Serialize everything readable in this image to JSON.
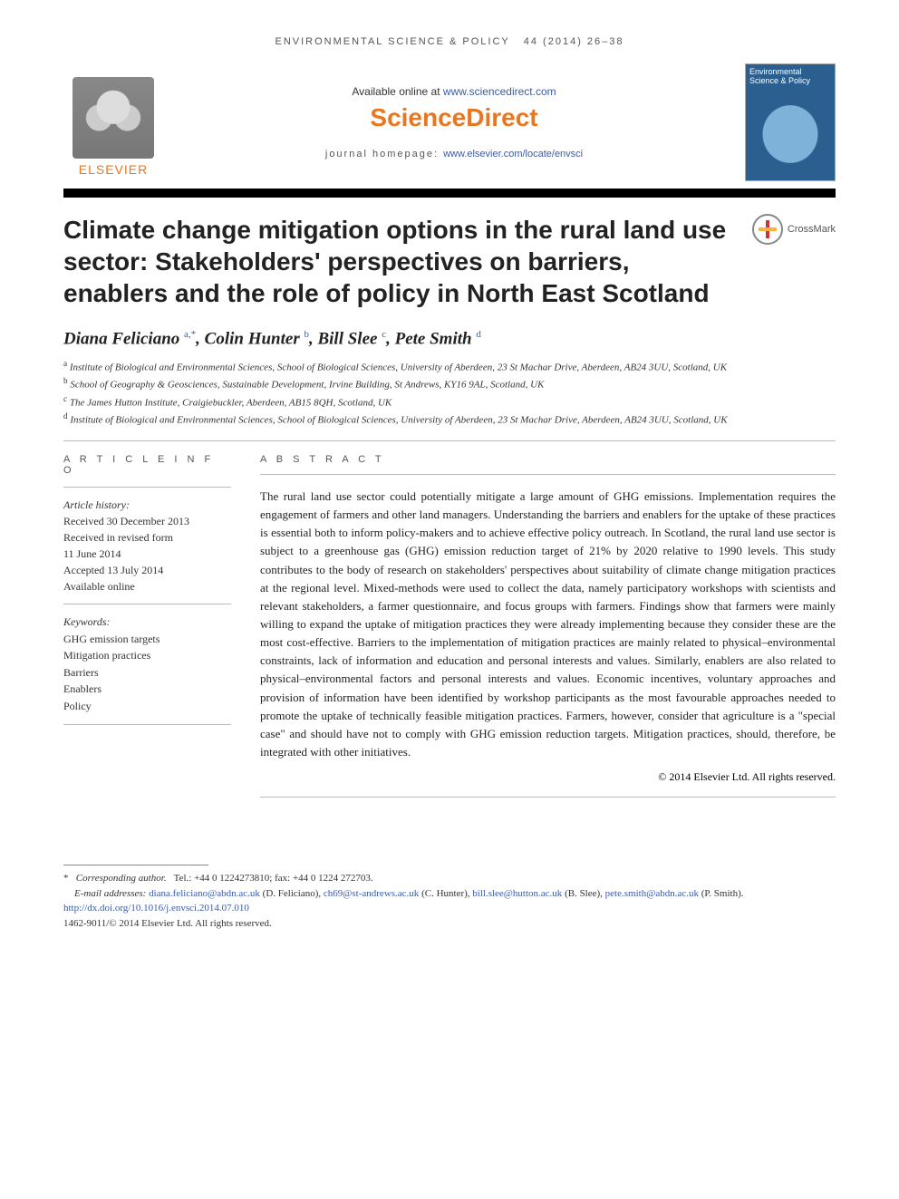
{
  "running_head": {
    "journal": "ENVIRONMENTAL SCIENCE & POLICY",
    "citation": "44 (2014) 26–38"
  },
  "banner": {
    "elsevier_word": "ELSEVIER",
    "available_prefix": "Available online at ",
    "available_url": "www.sciencedirect.com",
    "sd_logo": "ScienceDirect",
    "homepage_prefix": "journal homepage: ",
    "homepage_url": "www.elsevier.com/locate/envsci",
    "cover_title": "Environmental Science & Policy"
  },
  "title": "Climate change mitigation options in the rural land use sector: Stakeholders' perspectives on barriers, enablers and the role of policy in North East Scotland",
  "crossmark_label": "CrossMark",
  "authors_html": "Diana Feliciano <sup><a>a,</a>*</sup>, Colin Hunter <sup><a>b</a></sup>, Bill Slee <sup><a>c</a></sup>, Pete Smith <sup><a>d</a></sup>",
  "affiliations": [
    {
      "sup": "a",
      "text": "Institute of Biological and Environmental Sciences, School of Biological Sciences, University of Aberdeen, 23 St Machar Drive, Aberdeen, AB24 3UU, Scotland, UK"
    },
    {
      "sup": "b",
      "text": "School of Geography & Geosciences, Sustainable Development, Irvine Building, St Andrews, KY16 9AL, Scotland, UK"
    },
    {
      "sup": "c",
      "text": "The James Hutton Institute, Craigiebuckler, Aberdeen, AB15 8QH, Scotland, UK"
    },
    {
      "sup": "d",
      "text": "Institute of Biological and Environmental Sciences, School of Biological Sciences, University of Aberdeen, 23 St Machar Drive, Aberdeen, AB24 3UU, Scotland, UK"
    }
  ],
  "article_info": {
    "heading": "A R T I C L E   I N F O",
    "history_label": "Article history:",
    "history": [
      "Received 30 December 2013",
      "Received in revised form",
      "11 June 2014",
      "Accepted 13 July 2014",
      "Available online"
    ],
    "keywords_label": "Keywords:",
    "keywords": [
      "GHG emission targets",
      "Mitigation practices",
      "Barriers",
      "Enablers",
      "Policy"
    ]
  },
  "abstract": {
    "heading": "A B S T R A C T",
    "text": "The rural land use sector could potentially mitigate a large amount of GHG emissions. Implementation requires the engagement of farmers and other land managers. Understanding the barriers and enablers for the uptake of these practices is essential both to inform policy-makers and to achieve effective policy outreach. In Scotland, the rural land use sector is subject to a greenhouse gas (GHG) emission reduction target of 21% by 2020 relative to 1990 levels. This study contributes to the body of research on stakeholders' perspectives about suitability of climate change mitigation practices at the regional level. Mixed-methods were used to collect the data, namely participatory workshops with scientists and relevant stakeholders, a farmer questionnaire, and focus groups with farmers. Findings show that farmers were mainly willing to expand the uptake of mitigation practices they were already implementing because they consider these are the most cost-effective. Barriers to the implementation of mitigation practices are mainly related to physical–environmental constraints, lack of information and education and personal interests and values. Similarly, enablers are also related to physical–environmental factors and personal interests and values. Economic incentives, voluntary approaches and provision of information have been identified by workshop participants as the most favourable approaches needed to promote the uptake of technically feasible mitigation practices. Farmers, however, consider that agriculture is a \"special case\" and should have not to comply with GHG emission reduction targets. Mitigation practices, should, therefore, be integrated with other initiatives.",
    "copyright": "© 2014 Elsevier Ltd. All rights reserved."
  },
  "footnotes": {
    "corr_symbol": "*",
    "corr_label": "Corresponding author.",
    "corr_contact": "Tel.: +44 0 1224273810; fax: +44 0 1224 272703.",
    "emails_label": "E-mail addresses:",
    "emails": [
      {
        "addr": "diana.feliciano@abdn.ac.uk",
        "who": "(D. Feliciano)"
      },
      {
        "addr": "ch69@st-andrews.ac.uk",
        "who": "(C. Hunter)"
      },
      {
        "addr": "bill.slee@hutton.ac.uk",
        "who": "(B. Slee)"
      },
      {
        "addr": "pete.smith@abdn.ac.uk",
        "who": "(P. Smith)."
      }
    ],
    "doi_url": "http://dx.doi.org/10.1016/j.envsci.2014.07.010",
    "issn_line": "1462-9011/© 2014 Elsevier Ltd. All rights reserved."
  },
  "colors": {
    "link": "#3b5ba5",
    "orange": "#e87722",
    "cover_bg": "#2b5f8f"
  }
}
